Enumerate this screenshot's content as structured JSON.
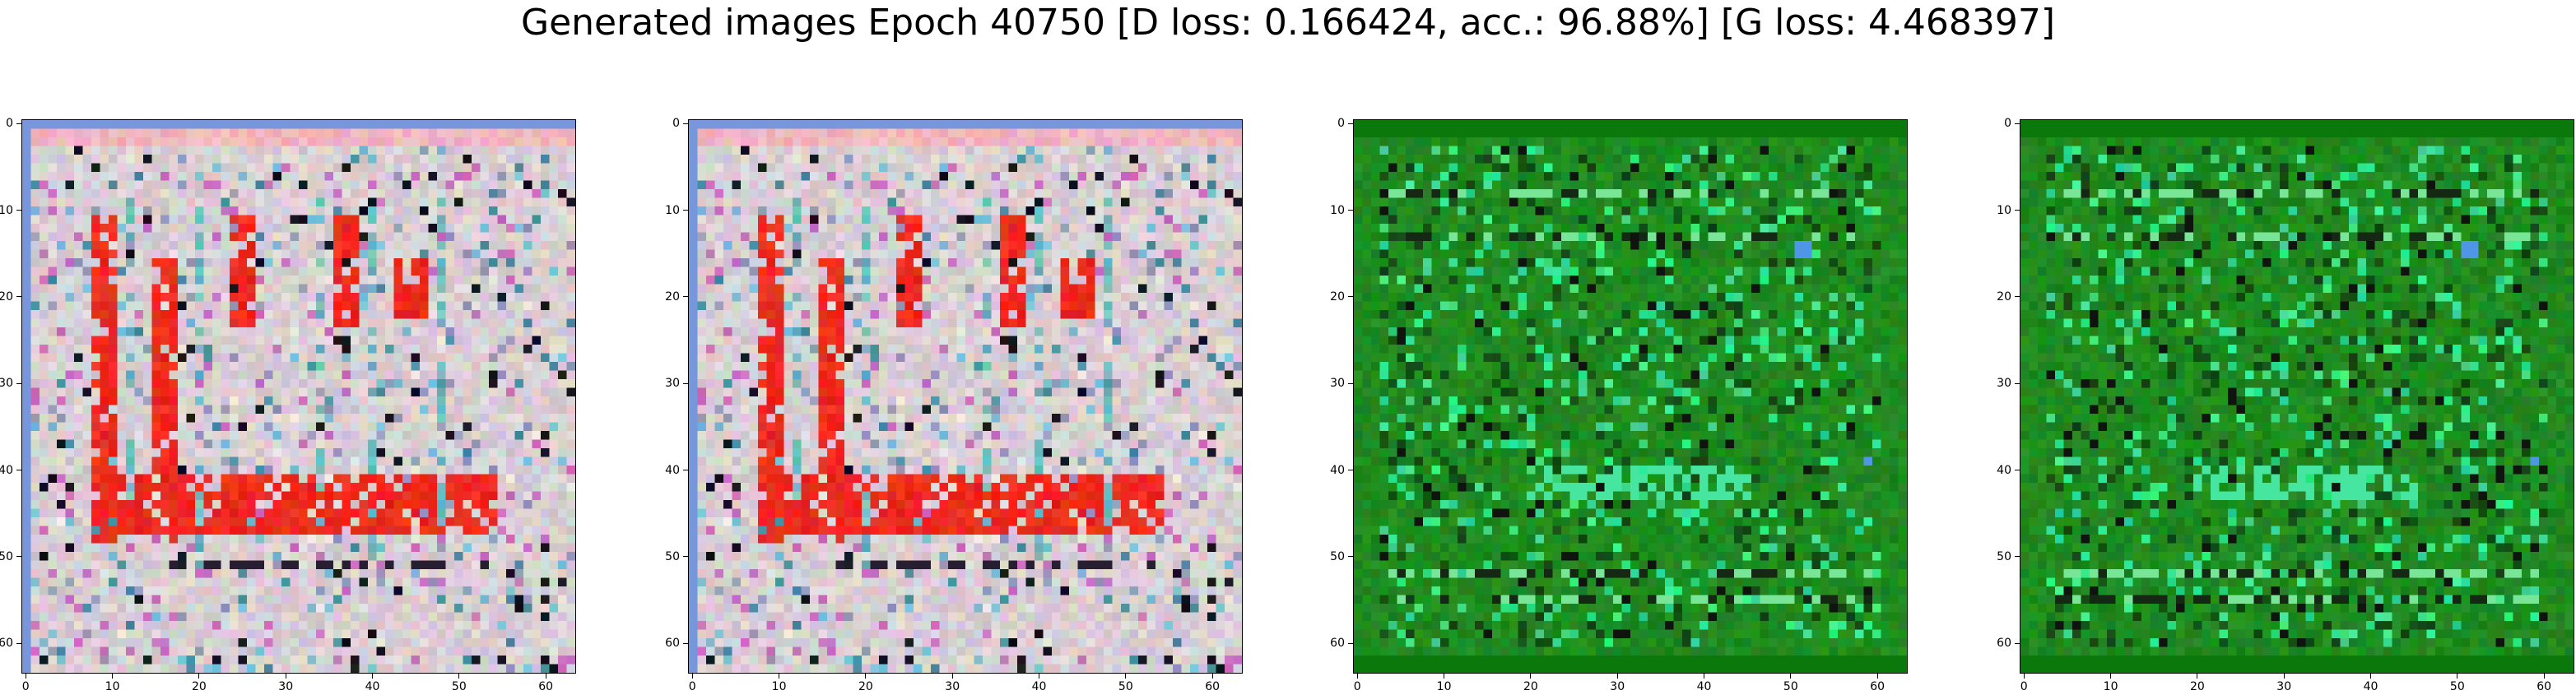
{
  "figure": {
    "suptitle": "Generated images Epoch 40750 [D loss: 0.166424, acc.: 96.88%] [G loss: 4.468397]"
  },
  "panels": [
    {
      "name": "generated-image-1",
      "palette": "red",
      "seed": 11,
      "x_ticks": [
        "0",
        "10",
        "20",
        "30",
        "40",
        "50",
        "60"
      ],
      "y_ticks": [
        "0",
        "10",
        "20",
        "30",
        "40",
        "50",
        "60"
      ]
    },
    {
      "name": "generated-image-2",
      "palette": "red",
      "seed": 11,
      "x_ticks": [
        "0",
        "10",
        "20",
        "30",
        "40",
        "50",
        "60"
      ],
      "y_ticks": [
        "0",
        "10",
        "20",
        "30",
        "40",
        "50",
        "60"
      ]
    },
    {
      "name": "generated-image-3",
      "palette": "green",
      "seed": 37,
      "x_ticks": [
        "0",
        "10",
        "20",
        "30",
        "40",
        "50",
        "60"
      ],
      "y_ticks": [
        "0",
        "10",
        "20",
        "30",
        "40",
        "50",
        "60"
      ]
    },
    {
      "name": "generated-image-4",
      "palette": "green",
      "seed": 38,
      "x_ticks": [
        "0",
        "10",
        "20",
        "30",
        "40",
        "50",
        "60"
      ],
      "y_ticks": [
        "0",
        "10",
        "20",
        "30",
        "40",
        "50",
        "60"
      ]
    }
  ],
  "colors": {
    "red_base": "#d9cfd3",
    "red_accent": "#ee2a1e",
    "green_base": "#1f8a1f",
    "green_accent": "#35e08a"
  }
}
